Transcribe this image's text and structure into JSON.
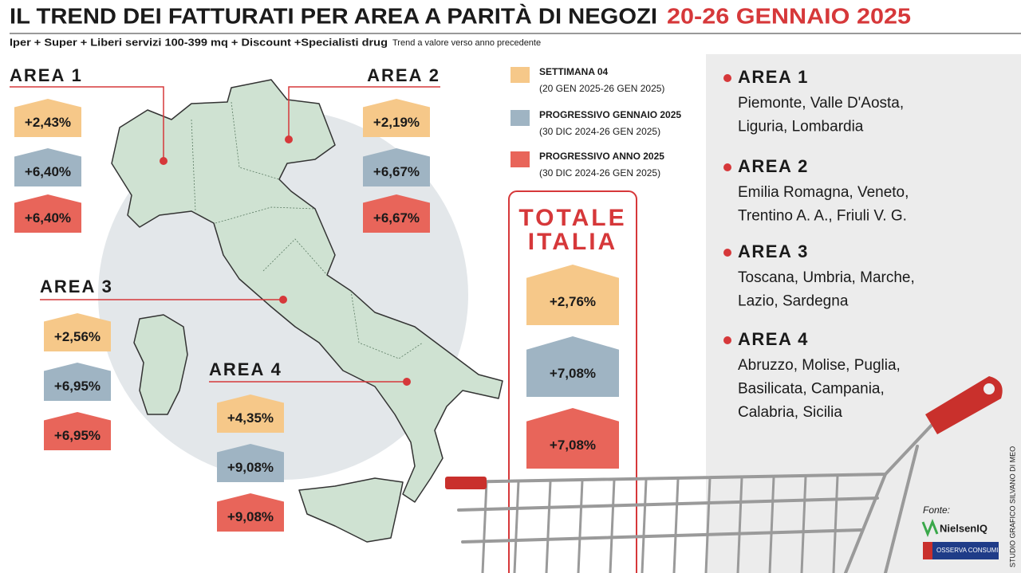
{
  "header": {
    "title": "IL TREND DEI FATTURATI PER AREA A PARITÀ DI NEGOZI",
    "title_date": "20-26 GENNAIO 2025",
    "subtitle": "Iper + Super + Liberi servizi 100-399 mq + Discount +Specialisti drug",
    "note": "Trend a valore verso anno precedente"
  },
  "legend": [
    {
      "label": "SETTIMANA 04",
      "period": "(20 GEN 2025-26 GEN 2025)",
      "color": "#f6c889"
    },
    {
      "label": "PROGRESSIVO GENNAIO 2025",
      "period": "(30 DIC 2024-26 GEN 2025)",
      "color": "#9fb4c3"
    },
    {
      "label": "PROGRESSIVO ANNO 2025",
      "period": "(30 DIC 2024-26 GEN 2025)",
      "color": "#e8655a"
    }
  ],
  "areas": [
    {
      "name": "AREA 1",
      "values": [
        "+2,43%",
        "+6,40%",
        "+6,40%"
      ]
    },
    {
      "name": "AREA 2",
      "values": [
        "+2,19%",
        "+6,67%",
        "+6,67%"
      ]
    },
    {
      "name": "AREA 3",
      "values": [
        "+2,56%",
        "+6,95%",
        "+6,95%"
      ]
    },
    {
      "name": "AREA 4",
      "values": [
        "+4,35%",
        "+9,08%",
        "+9,08%"
      ]
    }
  ],
  "total": {
    "title_line1": "TOTALE",
    "title_line2": "ITALIA",
    "values": [
      "+2,76%",
      "+7,08%",
      "+7,08%"
    ]
  },
  "regions": [
    {
      "name": "AREA 1",
      "lines": [
        "Piemonte, Valle D'Aosta,",
        "Liguria, Lombardia"
      ]
    },
    {
      "name": "AREA 2",
      "lines": [
        "Emilia Romagna, Veneto,",
        "Trentino A. A., Friuli V. G."
      ]
    },
    {
      "name": "AREA 3",
      "lines": [
        "Toscana, Umbria, Marche,",
        "Lazio, Sardegna"
      ]
    },
    {
      "name": "AREA 4",
      "lines": [
        "Abruzzo, Molise, Puglia,",
        "Basilicata, Campania,",
        "Calabria, Sicilia"
      ]
    }
  ],
  "credit": "STUDIO GRAFICO SILVANO DI MEO",
  "source": {
    "label": "Fonte:",
    "logos": [
      "NielsenIQ",
      "OSSERVA CONSUMI"
    ]
  }
}
